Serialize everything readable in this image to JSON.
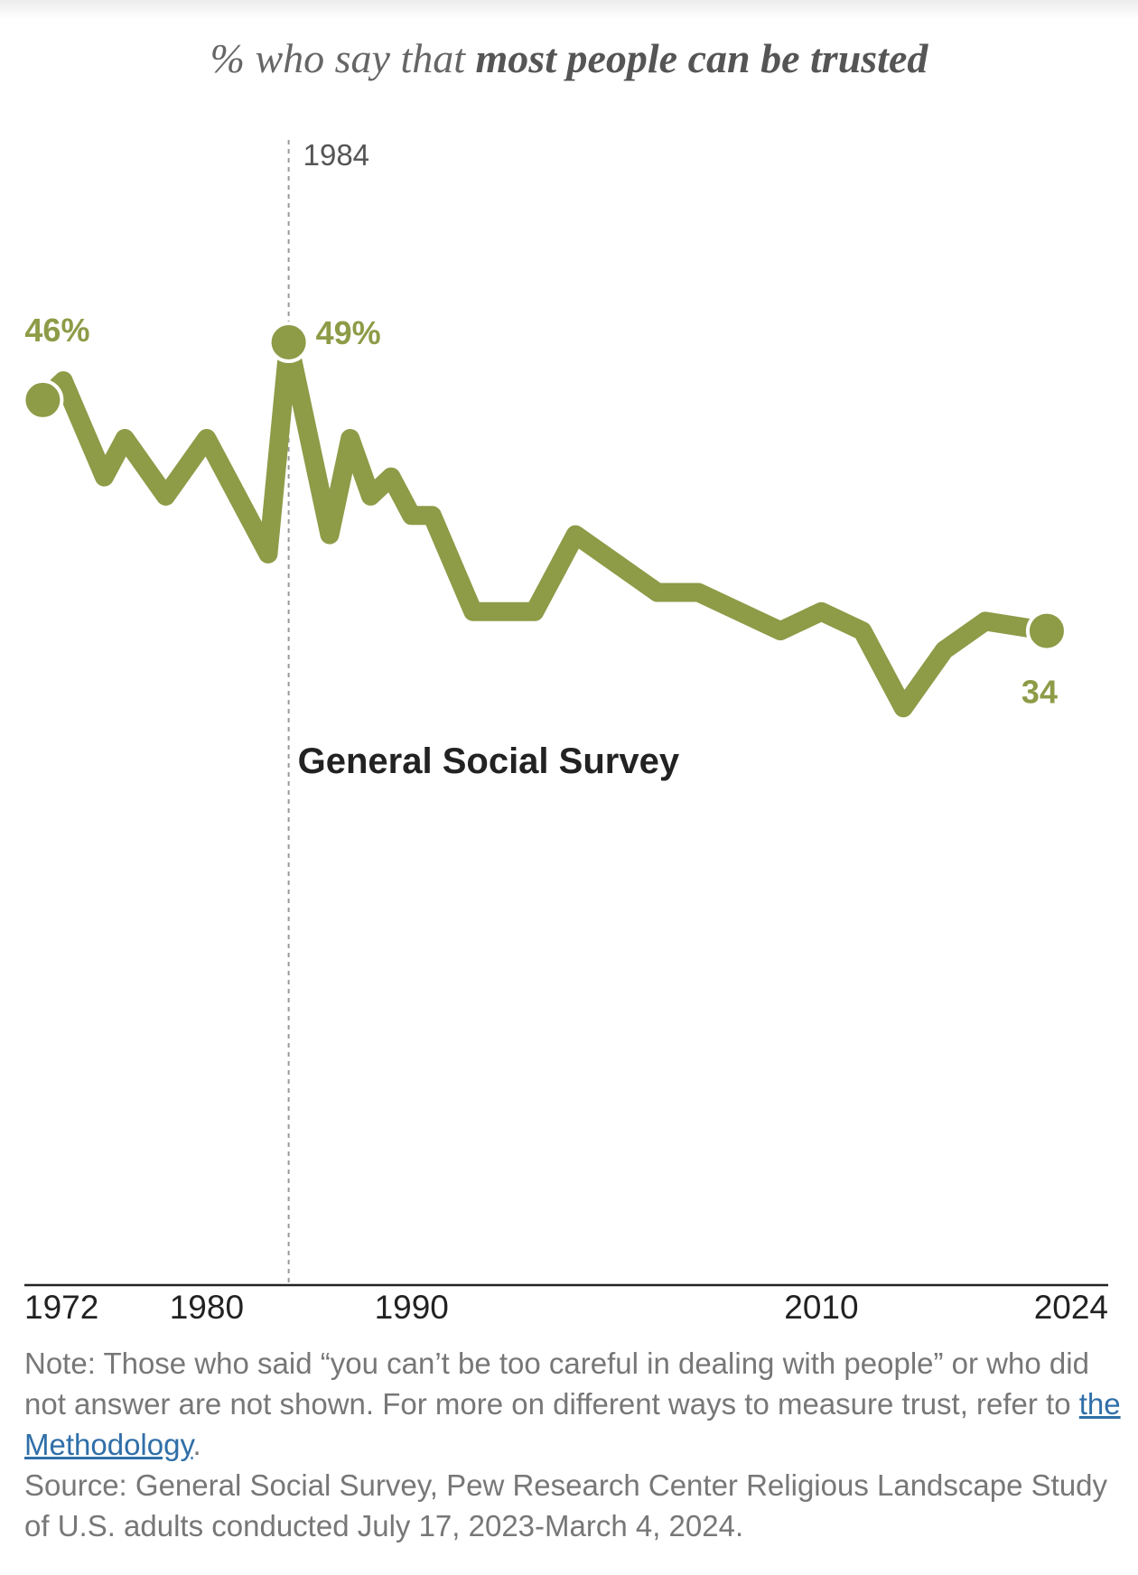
{
  "title": {
    "prefix": "% who say that ",
    "bold": "most people can be trusted"
  },
  "chart_data": {
    "type": "line",
    "title": "% who say that most people can be trusted",
    "series": [
      {
        "name": "General Social Survey",
        "x": [
          1972,
          1973,
          1975,
          1976,
          1978,
          1980,
          1983,
          1984,
          1986,
          1987,
          1988,
          1989,
          1990,
          1991,
          1993,
          1996,
          1998,
          2002,
          2004,
          2008,
          2010,
          2012,
          2014,
          2016,
          2018,
          2021
        ],
        "values": [
          46,
          47,
          42,
          44,
          41,
          44,
          38,
          49,
          39,
          44,
          41,
          42,
          40,
          40,
          35,
          35,
          39,
          36,
          36,
          34,
          35,
          34,
          30,
          33,
          34.5,
          34
        ]
      }
    ],
    "xlim": [
      1971.1,
      2024
    ],
    "ylim": [
      0,
      49
    ],
    "x_ticks": [
      "1972",
      "1980",
      "1990",
      "2010",
      "2024"
    ],
    "x_tick_values": [
      1972,
      1980,
      1990,
      2010,
      2024
    ],
    "color": "#8e9b47",
    "labels": {
      "start": "46%",
      "peak": "49%",
      "end": "34"
    },
    "series_label": "General Social Survey",
    "annotation": {
      "x": 1984,
      "label": "1984"
    },
    "grid": false
  },
  "notes": {
    "note_before_link": "Note: Those who said “you can’t be too careful in dealing with people” or who did not answer are not shown. For more on different ways to measure trust, refer to ",
    "link_text": "the Methodology",
    "note_after_link": ".",
    "source": "Source: General Social Survey, Pew Research Center Religious Landscape Study of U.S. adults conducted July 17, 2023-March 4, 2024."
  }
}
